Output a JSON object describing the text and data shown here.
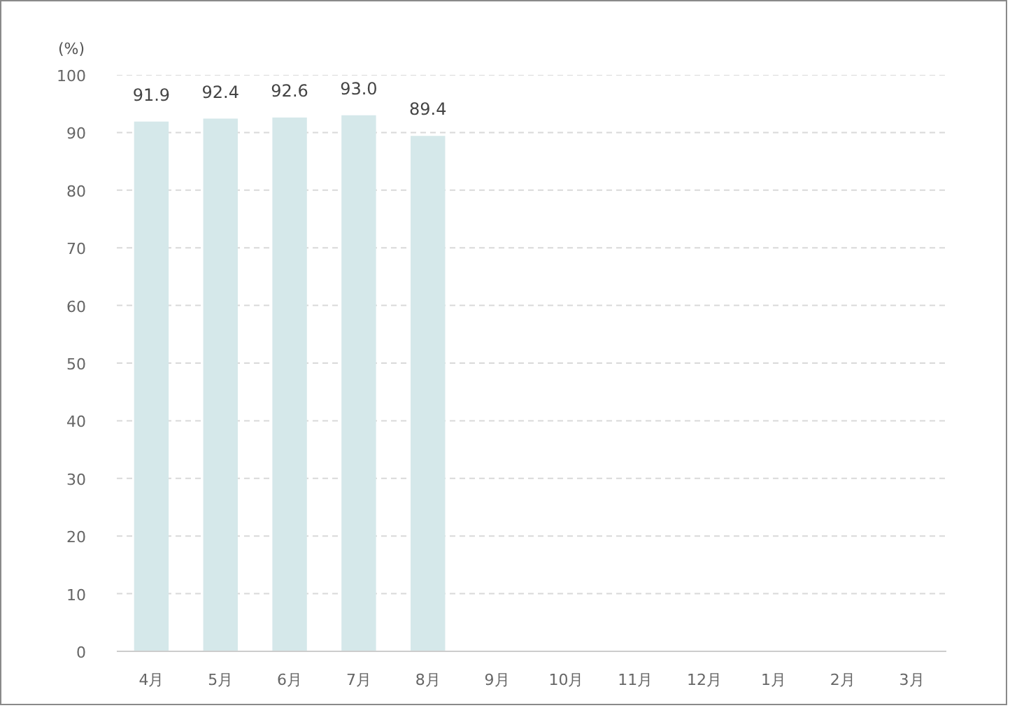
{
  "chart_data": {
    "type": "bar",
    "ylabel": "(%)",
    "categories": [
      "4月",
      "5月",
      "6月",
      "7月",
      "8月",
      "9月",
      "10月",
      "11月",
      "12月",
      "1月",
      "2月",
      "3月"
    ],
    "values": [
      91.9,
      92.4,
      92.6,
      93.0,
      89.4,
      null,
      null,
      null,
      null,
      null,
      null,
      null
    ],
    "value_labels": [
      "91.9",
      "92.4",
      "92.6",
      "93.0",
      "89.4",
      null,
      null,
      null,
      null,
      null,
      null,
      null
    ],
    "color": "#d5e8ea",
    "ylim": [
      0,
      100
    ],
    "yticks": [
      0,
      10,
      20,
      30,
      40,
      50,
      60,
      70,
      80,
      90,
      100
    ],
    "grid": "y"
  }
}
